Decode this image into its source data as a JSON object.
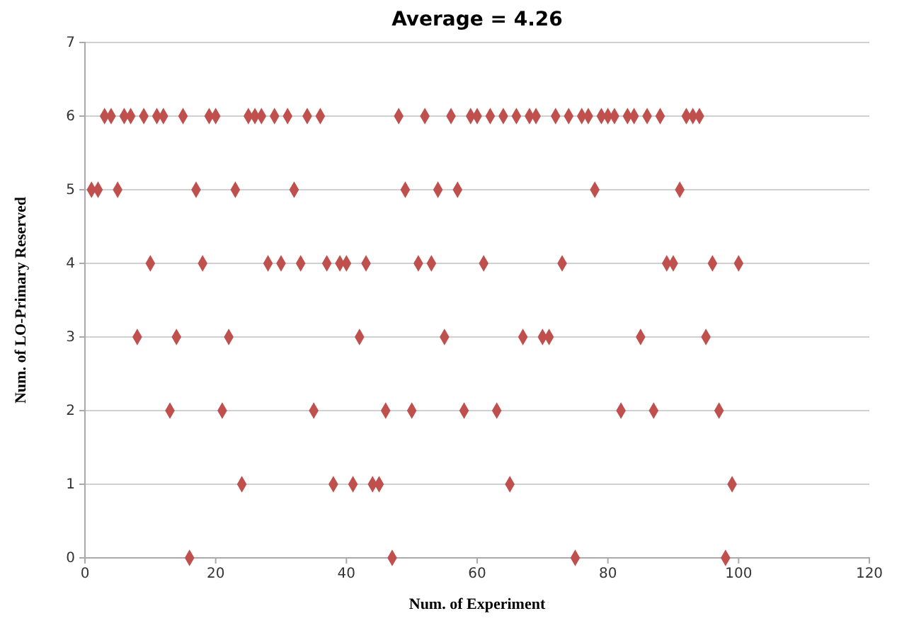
{
  "chart_data": {
    "type": "scatter",
    "title": "Average = 4.26",
    "xlabel": "Num. of Experiment",
    "ylabel": "Num. of LO-Primary Reserved",
    "x": [
      1,
      2,
      3,
      4,
      5,
      6,
      7,
      8,
      9,
      10,
      11,
      12,
      13,
      14,
      15,
      16,
      17,
      18,
      19,
      20,
      21,
      22,
      23,
      24,
      25,
      26,
      27,
      28,
      29,
      30,
      31,
      32,
      33,
      34,
      35,
      36,
      37,
      38,
      39,
      40,
      41,
      42,
      43,
      44,
      45,
      46,
      47,
      48,
      49,
      50,
      51,
      52,
      53,
      54,
      55,
      56,
      57,
      58,
      59,
      60,
      61,
      62,
      63,
      64,
      65,
      66,
      67,
      68,
      69,
      70,
      71,
      72,
      73,
      74,
      75,
      76,
      77,
      78,
      79,
      80,
      81,
      82,
      83,
      84,
      85,
      86,
      87,
      88,
      89,
      90,
      91,
      92,
      93,
      94,
      95,
      96,
      97,
      98,
      99,
      100
    ],
    "series": [
      {
        "color": "#c0504d",
        "values": [
          5,
          5,
          6,
          6,
          5,
          6,
          6,
          3,
          6,
          4,
          6,
          6,
          2,
          3,
          6,
          0,
          5,
          4,
          6,
          6,
          2,
          3,
          5,
          1,
          6,
          6,
          6,
          4,
          6,
          4,
          6,
          5,
          4,
          6,
          2,
          6,
          4,
          1,
          4,
          4,
          1,
          3,
          4,
          1,
          1,
          2,
          0,
          6,
          5,
          2,
          4,
          6,
          4,
          5,
          3,
          6,
          5,
          2,
          6,
          6,
          4,
          6,
          2,
          6,
          1,
          6,
          3,
          6,
          6,
          3,
          3,
          6,
          4,
          6,
          0,
          6,
          6,
          5,
          6,
          6,
          6,
          2,
          6,
          6,
          3,
          6,
          2,
          6,
          4,
          4,
          5,
          6,
          6,
          6,
          3,
          4,
          2,
          0,
          1,
          4
        ]
      }
    ],
    "xlim": [
      0,
      120
    ],
    "xticks": [
      0,
      20,
      40,
      60,
      80,
      100,
      120
    ],
    "ylim": [
      0,
      7
    ],
    "yticks": [
      0,
      1,
      2,
      3,
      4,
      5,
      6,
      7
    ],
    "grid": "y",
    "marker": "diamond"
  }
}
